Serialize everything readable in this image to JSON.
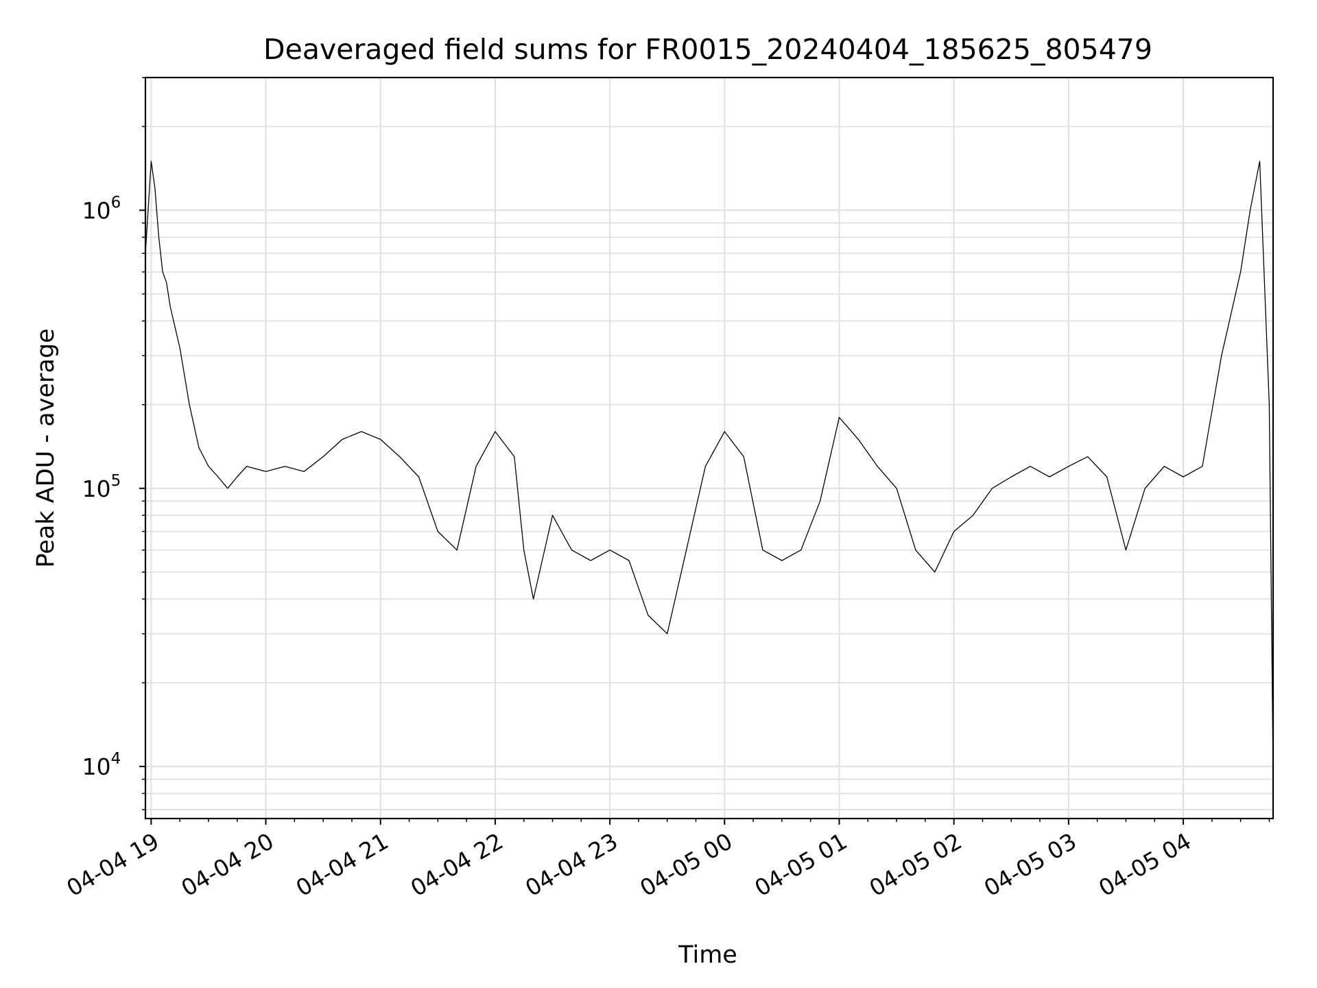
{
  "colors": {
    "line": "#000000",
    "grid": "#e0e0e0",
    "axes": "#000000",
    "background": "#ffffff"
  },
  "chart_data": {
    "type": "line",
    "title": "Deaveraged field sums for FR0015_20240404_185625_805479",
    "xlabel": "Time",
    "ylabel": "Peak ADU - average",
    "yscale": "log",
    "xlim": [
      "2024-04-04T18:57",
      "2024-04-05T04:47"
    ],
    "ylim": [
      6500,
      3000000
    ],
    "grid": true,
    "legend": "none",
    "x_ticks": [
      {
        "time": "2024-04-04T19:00",
        "label": "04-04 19"
      },
      {
        "time": "2024-04-04T20:00",
        "label": "04-04 20"
      },
      {
        "time": "2024-04-04T21:00",
        "label": "04-04 21"
      },
      {
        "time": "2024-04-04T22:00",
        "label": "04-04 22"
      },
      {
        "time": "2024-04-04T23:00",
        "label": "04-04 23"
      },
      {
        "time": "2024-04-05T00:00",
        "label": "04-05 00"
      },
      {
        "time": "2024-04-05T01:00",
        "label": "04-05 01"
      },
      {
        "time": "2024-04-05T02:00",
        "label": "04-05 02"
      },
      {
        "time": "2024-04-05T03:00",
        "label": "04-05 03"
      },
      {
        "time": "2024-04-05T04:00",
        "label": "04-05 04"
      }
    ],
    "y_ticks": [
      {
        "value": 10000,
        "base": "10",
        "exp": "4"
      },
      {
        "value": 100000,
        "base": "10",
        "exp": "5"
      },
      {
        "value": 1000000,
        "base": "10",
        "exp": "6"
      }
    ],
    "series": [
      {
        "x": [
          "2024-04-04T18:57",
          "2024-04-04T19:00",
          "2024-04-04T19:02",
          "2024-04-04T19:04",
          "2024-04-04T19:06",
          "2024-04-04T19:08",
          "2024-04-04T19:10",
          "2024-04-04T19:15",
          "2024-04-04T19:20",
          "2024-04-04T19:25",
          "2024-04-04T19:30",
          "2024-04-04T19:35",
          "2024-04-04T19:40",
          "2024-04-04T19:45",
          "2024-04-04T19:50",
          "2024-04-04T20:00",
          "2024-04-04T20:10",
          "2024-04-04T20:20",
          "2024-04-04T20:30",
          "2024-04-04T20:40",
          "2024-04-04T20:50",
          "2024-04-04T21:00",
          "2024-04-04T21:10",
          "2024-04-04T21:20",
          "2024-04-04T21:30",
          "2024-04-04T21:40",
          "2024-04-04T21:50",
          "2024-04-04T22:00",
          "2024-04-04T22:10",
          "2024-04-04T22:15",
          "2024-04-04T22:20",
          "2024-04-04T22:30",
          "2024-04-04T22:40",
          "2024-04-04T22:50",
          "2024-04-04T23:00",
          "2024-04-04T23:10",
          "2024-04-04T23:20",
          "2024-04-04T23:30",
          "2024-04-04T23:40",
          "2024-04-04T23:50",
          "2024-04-05T00:00",
          "2024-04-05T00:10",
          "2024-04-05T00:20",
          "2024-04-05T00:30",
          "2024-04-05T00:40",
          "2024-04-05T00:50",
          "2024-04-05T01:00",
          "2024-04-05T01:10",
          "2024-04-05T01:20",
          "2024-04-05T01:30",
          "2024-04-05T01:40",
          "2024-04-05T01:50",
          "2024-04-05T02:00",
          "2024-04-05T02:10",
          "2024-04-05T02:20",
          "2024-04-05T02:30",
          "2024-04-05T02:40",
          "2024-04-05T02:50",
          "2024-04-05T03:00",
          "2024-04-05T03:10",
          "2024-04-05T03:20",
          "2024-04-05T03:30",
          "2024-04-05T03:40",
          "2024-04-05T03:50",
          "2024-04-05T04:00",
          "2024-04-05T04:10",
          "2024-04-05T04:20",
          "2024-04-05T04:30",
          "2024-04-05T04:35",
          "2024-04-05T04:40",
          "2024-04-05T04:45",
          "2024-04-05T04:47"
        ],
        "y": [
          700000,
          1500000,
          1200000,
          800000,
          600000,
          550000,
          450000,
          320000,
          200000,
          140000,
          120000,
          110000,
          100000,
          110000,
          120000,
          115000,
          120000,
          115000,
          130000,
          150000,
          160000,
          150000,
          130000,
          110000,
          70000,
          60000,
          120000,
          160000,
          130000,
          60000,
          40000,
          80000,
          60000,
          55000,
          60000,
          55000,
          35000,
          30000,
          60000,
          120000,
          160000,
          130000,
          60000,
          55000,
          60000,
          90000,
          180000,
          150000,
          120000,
          100000,
          60000,
          50000,
          70000,
          80000,
          100000,
          110000,
          120000,
          110000,
          120000,
          130000,
          110000,
          60000,
          100000,
          120000,
          110000,
          120000,
          300000,
          600000,
          1000000,
          1500000,
          200000,
          10000
        ]
      }
    ]
  }
}
